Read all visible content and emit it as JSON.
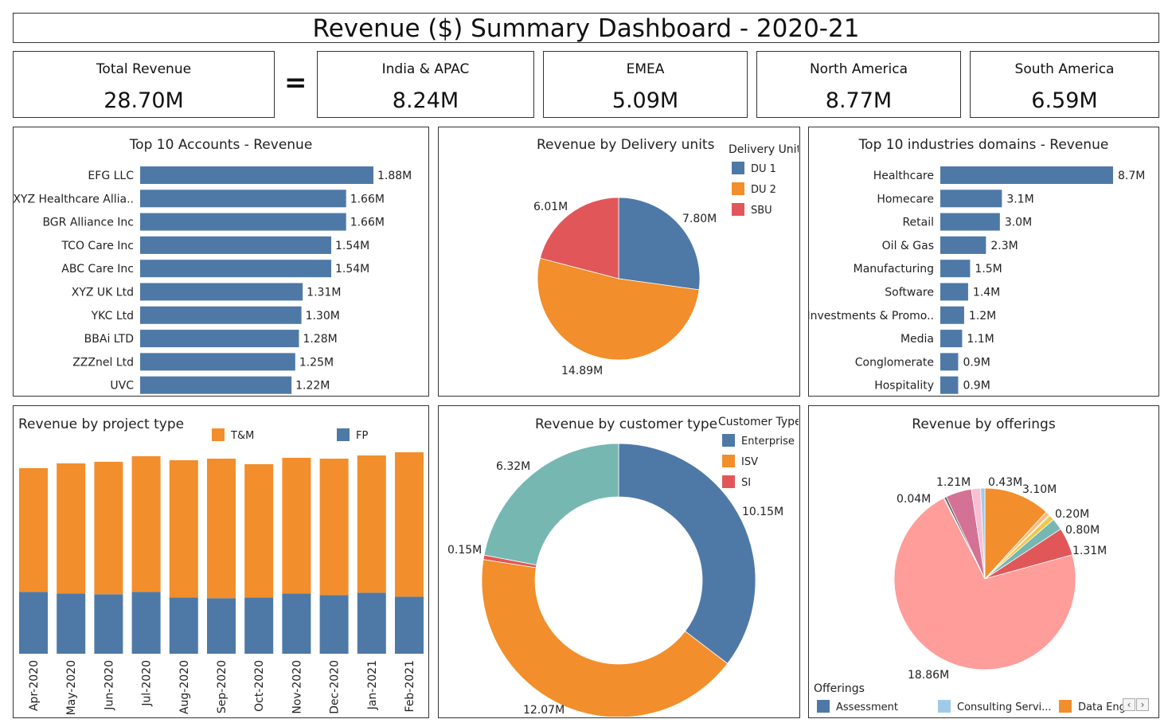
{
  "dashboard": {
    "title": "Revenue ($) Summary Dashboard - 2020-21"
  },
  "kpis": {
    "total": {
      "label": "Total Revenue",
      "value": "28.70M"
    },
    "equals": "=",
    "regions": [
      {
        "label": "India & APAC",
        "value": "8.24M"
      },
      {
        "label": "EMEA",
        "value": "5.09M"
      },
      {
        "label": "North America",
        "value": "8.77M"
      },
      {
        "label": "South America",
        "value": "6.59M"
      }
    ]
  },
  "colors": {
    "blue": "#4e79a7",
    "orange": "#f28e2b",
    "red": "#e15759",
    "teal": "#76b7b2",
    "lightblue": "#a0cbe8",
    "salmon": "#ff9d9a",
    "pink": "#fabfd2",
    "rose": "#d37295",
    "brown": "#79706e",
    "green": "#59a14f",
    "yellow": "#edc948",
    "tan": "#ffbe7d"
  },
  "chart_data": [
    {
      "type": "bar",
      "title": "Top 10 Accounts - Revenue",
      "categories": [
        "EFG LLC",
        "XYZ Healthcare Allia..",
        "BGR Alliance Inc",
        "TCO Care Inc",
        "ABC Care Inc",
        "XYZ UK Ltd",
        "YKC Ltd",
        "BBAi LTD",
        "ZZZnel Ltd",
        "UVC"
      ],
      "values": [
        1.88,
        1.66,
        1.66,
        1.54,
        1.54,
        1.31,
        1.3,
        1.28,
        1.25,
        1.22
      ],
      "labels": [
        "1.88M",
        "1.66M",
        "1.66M",
        "1.54M",
        "1.54M",
        "1.31M",
        "1.30M",
        "1.28M",
        "1.25M",
        "1.22M"
      ]
    },
    {
      "type": "pie",
      "title": "Revenue by Delivery units",
      "legend_title": "Delivery Unit",
      "categories": [
        "DU 1",
        "DU 2",
        "SBU"
      ],
      "values": [
        7.8,
        14.89,
        6.01
      ],
      "labels": [
        "7.80M",
        "14.89M",
        "6.01M"
      ]
    },
    {
      "type": "bar",
      "title": "Top 10 industries domains - Revenue",
      "categories": [
        "Healthcare",
        "Homecare",
        "Retail",
        "Oil & Gas",
        "Manufacturing",
        "Software",
        "Investments & Promo..",
        "Media",
        "Conglomerate",
        "Hospitality"
      ],
      "values": [
        8.7,
        3.1,
        3.0,
        2.3,
        1.5,
        1.4,
        1.2,
        1.1,
        0.9,
        0.9
      ],
      "labels": [
        "8.7M",
        "3.1M",
        "3.0M",
        "2.3M",
        "1.5M",
        "1.4M",
        "1.2M",
        "1.1M",
        "0.9M",
        "0.9M"
      ]
    },
    {
      "type": "bar",
      "title": "Revenue by project type",
      "stacked": true,
      "categories": [
        "Apr-2020",
        "May-2020",
        "Jun-2020",
        "Jul-2020",
        "Aug-2020",
        "Sep-2020",
        "Oct-2020",
        "Nov-2020",
        "Dec-2020",
        "Jan-2021",
        "Feb-2021"
      ],
      "series": [
        {
          "name": "FP",
          "values": [
            0.78,
            0.76,
            0.75,
            0.78,
            0.71,
            0.7,
            0.71,
            0.76,
            0.74,
            0.77,
            0.72
          ]
        },
        {
          "name": "T&M",
          "values": [
            1.56,
            1.64,
            1.67,
            1.71,
            1.73,
            1.76,
            1.68,
            1.71,
            1.72,
            1.73,
            1.82
          ]
        }
      ],
      "legend_order": [
        "T&M",
        "FP"
      ]
    },
    {
      "type": "pie",
      "donut": true,
      "title": "Revenue by customer type",
      "legend_title": "Customer Type",
      "legend": [
        "Enterprise",
        "ISV",
        "SI"
      ],
      "categories": [
        "Enterprise",
        "ISV",
        "SI",
        ""
      ],
      "values": [
        10.15,
        12.07,
        0.15,
        6.32
      ],
      "labels": [
        "10.15M",
        "12.07M",
        "0.15M",
        "6.32M"
      ]
    },
    {
      "type": "pie",
      "title": "Revenue by offerings",
      "legend_title": "Offerings",
      "legend": [
        "Assessment",
        "Consulting Servi...",
        "Data Eng"
      ],
      "values": [
        3.1,
        0.2,
        0.04,
        0.8,
        1.31,
        18.86,
        0.04,
        0.1,
        1.21,
        0.43
      ],
      "labels": [
        "3.10M",
        "0.20M",
        "",
        "0.80M",
        "1.31M",
        "18.86M",
        "0.04M",
        "",
        "1.21M",
        "0.43M"
      ]
    }
  ]
}
